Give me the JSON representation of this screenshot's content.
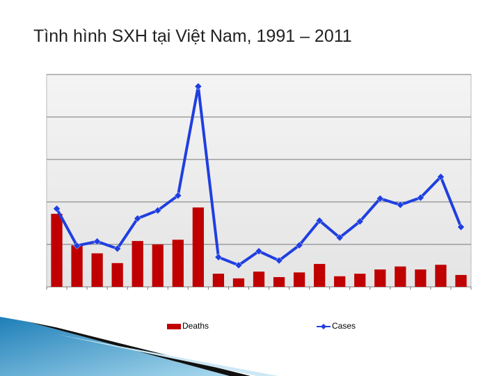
{
  "chart_data": {
    "type": "bar-line",
    "title": "Tình hình SXH tại Việt Nam, 1991 – 2011",
    "ylim": [
      0,
      5
    ],
    "yticks": [
      0,
      1,
      2,
      3,
      4,
      5
    ],
    "grid": true,
    "tick_labels": false,
    "legend": "bottom",
    "series": [
      {
        "name": "Deaths",
        "type": "bar",
        "color": "#c00000",
        "values": [
          1.72,
          0.98,
          0.79,
          0.56,
          1.08,
          1.0,
          1.11,
          1.87,
          0.31,
          0.2,
          0.36,
          0.23,
          0.34,
          0.54,
          0.25,
          0.31,
          0.41,
          0.48,
          0.41,
          0.52,
          0.28
        ]
      },
      {
        "name": "Cases",
        "type": "line",
        "color": "#1f3fe0",
        "values": [
          1.84,
          0.97,
          1.07,
          0.9,
          1.61,
          1.8,
          2.15,
          4.72,
          0.7,
          0.51,
          0.84,
          0.62,
          0.98,
          1.56,
          1.16,
          1.54,
          2.08,
          1.93,
          2.1,
          2.59,
          1.41
        ]
      }
    ]
  }
}
